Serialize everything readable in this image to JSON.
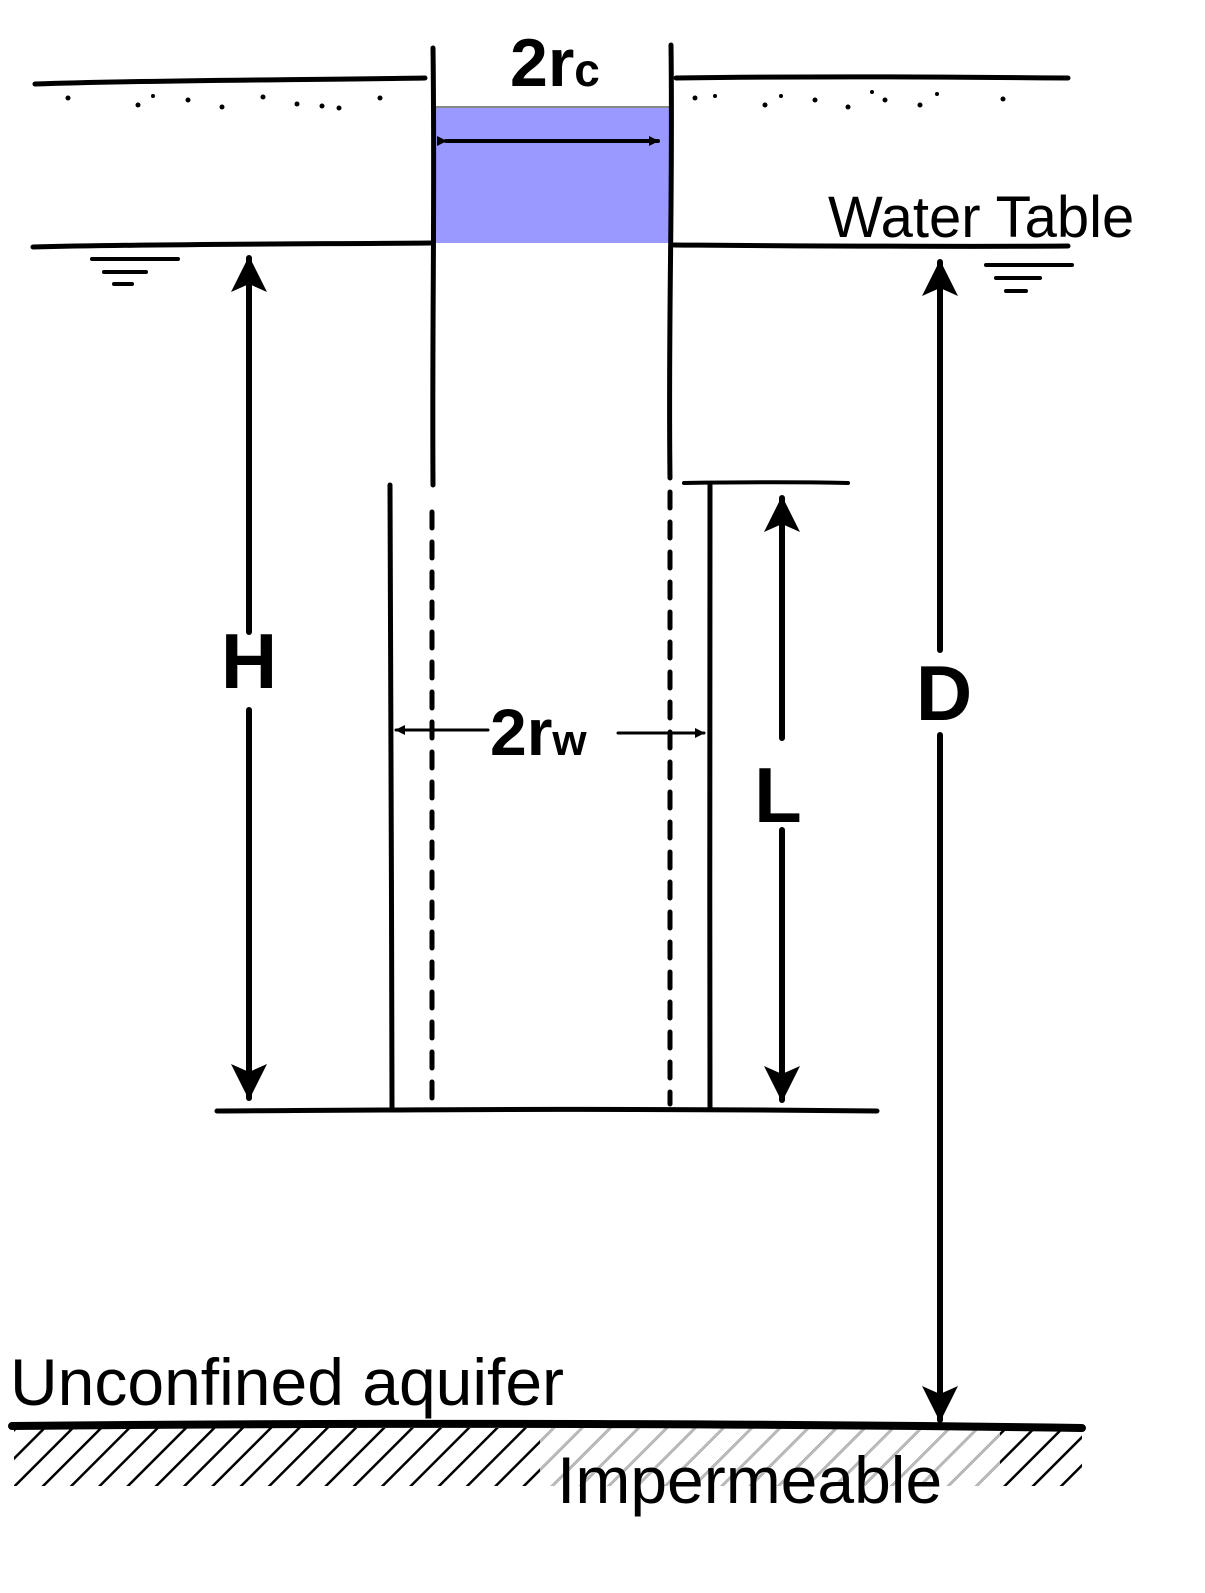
{
  "labels": {
    "casing_diameter_main": "2r",
    "casing_diameter_sub": "c",
    "water_table": "Water Table",
    "head": "H",
    "aquifer_depth": "D",
    "well_diameter_main": "2r",
    "well_diameter_sub": "w",
    "screen_length": "L",
    "aquifer_type": "Unconfined aquifer",
    "impermeable": "Impermeable"
  },
  "colors": {
    "water": "#9999ff",
    "line": "#000000",
    "hatch": "#000000",
    "hatch_faded": "#bbbbbb"
  }
}
